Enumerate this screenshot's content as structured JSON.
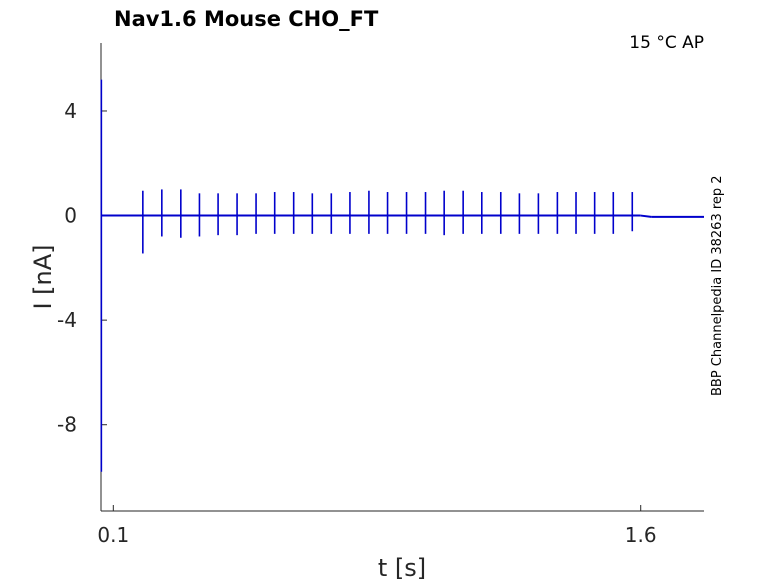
{
  "chart_data": {
    "type": "line",
    "title": "Nav1.6  Mouse  CHO_FT",
    "annotation": "15 °C  AP",
    "side_label": "BBP Channelpedia ID 38263 rep 2",
    "xlabel": "t [s]",
    "ylabel": "I [nA]",
    "xlim": [
      0.065,
      1.78
    ],
    "ylim": [
      -11.3,
      6.6
    ],
    "xticks": [
      0.1,
      1.6
    ],
    "xtick_labels": [
      "0.1",
      "1.6"
    ],
    "yticks": [
      4,
      0,
      -4,
      -8
    ],
    "ytick_labels": [
      "4",
      "0",
      "-4",
      "-8"
    ],
    "grid": false,
    "series_color": "#0000cc",
    "series": [
      {
        "baseline": 0.0,
        "initial_transient": {
          "t": 0.066,
          "min": -9.8,
          "max": 5.2
        },
        "spikes": [
          {
            "t": 0.184,
            "max": 0.95,
            "min": -1.45
          },
          {
            "t": 0.238,
            "max": 1.0,
            "min": -0.8
          },
          {
            "t": 0.292,
            "max": 1.0,
            "min": -0.85
          },
          {
            "t": 0.345,
            "max": 0.85,
            "min": -0.8
          },
          {
            "t": 0.398,
            "max": 0.85,
            "min": -0.75
          },
          {
            "t": 0.452,
            "max": 0.85,
            "min": -0.75
          },
          {
            "t": 0.506,
            "max": 0.85,
            "min": -0.7
          },
          {
            "t": 0.559,
            "max": 0.9,
            "min": -0.7
          },
          {
            "t": 0.613,
            "max": 0.9,
            "min": -0.7
          },
          {
            "t": 0.666,
            "max": 0.85,
            "min": -0.7
          },
          {
            "t": 0.72,
            "max": 0.85,
            "min": -0.7
          },
          {
            "t": 0.773,
            "max": 0.9,
            "min": -0.7
          },
          {
            "t": 0.827,
            "max": 0.95,
            "min": -0.7
          },
          {
            "t": 0.88,
            "max": 0.9,
            "min": -0.7
          },
          {
            "t": 0.934,
            "max": 0.9,
            "min": -0.7
          },
          {
            "t": 0.988,
            "max": 0.9,
            "min": -0.7
          },
          {
            "t": 1.041,
            "max": 0.95,
            "min": -0.75
          },
          {
            "t": 1.095,
            "max": 0.95,
            "min": -0.7
          },
          {
            "t": 1.148,
            "max": 0.9,
            "min": -0.7
          },
          {
            "t": 1.202,
            "max": 0.9,
            "min": -0.7
          },
          {
            "t": 1.255,
            "max": 0.85,
            "min": -0.7
          },
          {
            "t": 1.309,
            "max": 0.85,
            "min": -0.7
          },
          {
            "t": 1.363,
            "max": 0.9,
            "min": -0.7
          },
          {
            "t": 1.416,
            "max": 0.9,
            "min": -0.7
          },
          {
            "t": 1.469,
            "max": 0.9,
            "min": -0.7
          },
          {
            "t": 1.522,
            "max": 0.9,
            "min": -0.7
          },
          {
            "t": 1.576,
            "max": 0.9,
            "min": -0.6
          }
        ],
        "stimulus_end": 1.6,
        "tail_offset": -0.05
      }
    ]
  }
}
